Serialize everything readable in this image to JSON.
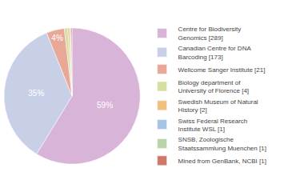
{
  "chart_data": {
    "type": "pie",
    "categories": [
      "Centre for Biodiversity\nGenomics [289]",
      "Canadian Centre for DNA\nBarcoding [173]",
      "Wellcome Sanger Institute [21]",
      "Biology department of\nUniversity of Florence [4]",
      "Swedish Museum of Natural\nHistory [2]",
      "Swiss Federal Research\nInstitute WSL [1]",
      "SNSB, Zoologische\nStaatssammlung Muenchen [1]",
      "Mined from GenBank, NCBI [1]"
    ],
    "values": [
      58.7398,
      35.1626,
      4.2683,
      0.813,
      0.4065,
      0.2033,
      0.2033,
      0.2033
    ],
    "value_labels": [
      "59%",
      "35%",
      "4%",
      null,
      null,
      null,
      null,
      null
    ],
    "data_labels": true,
    "colors": [
      "#d8b4d8",
      "#c8d0e8",
      "#e8a898",
      "#d4dfa0",
      "#f0c080",
      "#a8c4e4",
      "#b8d4a8",
      "#d07868"
    ],
    "legend": "right"
  }
}
